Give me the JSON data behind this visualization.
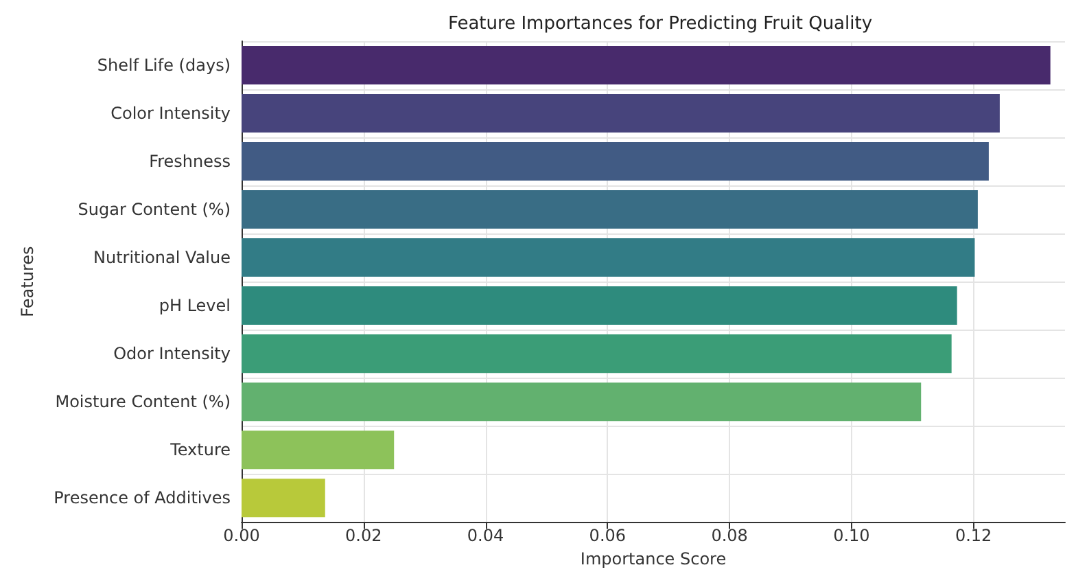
{
  "chart_data": {
    "type": "bar",
    "orientation": "horizontal",
    "title": "Feature Importances for Predicting Fruit Quality",
    "xlabel": "Importance Score",
    "ylabel": "Features",
    "categories": [
      "Shelf Life (days)",
      "Color Intensity",
      "Freshness",
      "Sugar Content (%)",
      "Nutritional Value",
      "pH Level",
      "Odor Intensity",
      "Moisture Content (%)",
      "Texture",
      "Presence of Additives"
    ],
    "values": [
      0.1326,
      0.1243,
      0.1225,
      0.1207,
      0.1202,
      0.1173,
      0.1164,
      0.1114,
      0.025,
      0.0137
    ],
    "colors": [
      "#482a6c",
      "#47447c",
      "#415b84",
      "#396d85",
      "#327c86",
      "#2e8b7d",
      "#3b9d77",
      "#62b16f",
      "#8dc25a",
      "#b8c93a"
    ],
    "xlim": [
      0,
      0.135
    ],
    "xticks": [
      {
        "value": 0,
        "label": "0.00"
      },
      {
        "value": 0.02,
        "label": "0.02"
      },
      {
        "value": 0.04,
        "label": "0.04"
      },
      {
        "value": 0.06,
        "label": "0.06"
      },
      {
        "value": 0.08,
        "label": "0.08"
      },
      {
        "value": 0.1,
        "label": "0.10"
      },
      {
        "value": 0.12,
        "label": "0.12"
      }
    ],
    "grid": true
  }
}
